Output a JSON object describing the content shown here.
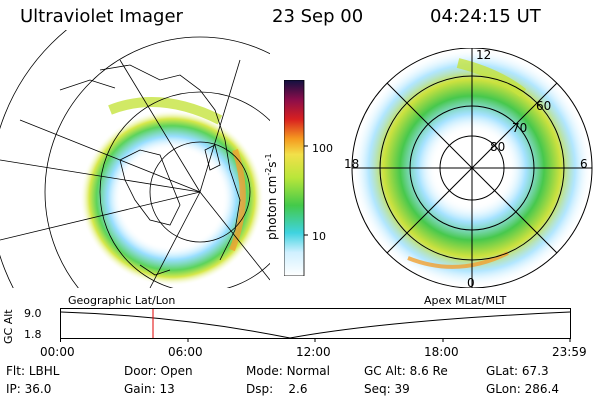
{
  "header": {
    "instrument": "Ultraviolet Imager",
    "date": "23 Sep 00",
    "time": "04:24:15 UT"
  },
  "colorbar": {
    "unit_label": "photon cm",
    "unit_exp1": "-2",
    "unit_mid": "s",
    "unit_exp2": "-1",
    "ticks": [
      "100",
      "10"
    ],
    "scale": "log"
  },
  "polar_plot": {
    "mlt_labels": {
      "top": "12",
      "left": "18",
      "right": "6",
      "bottom": "0"
    },
    "lat_labels": [
      "60",
      "70",
      "80"
    ]
  },
  "panels": {
    "left_caption": "Geographic Lat/Lon",
    "right_caption": "Apex MLat/MLT"
  },
  "altitude_plot": {
    "ylabel": "GC Alt",
    "y_ticks": [
      "9.0",
      "1.8"
    ],
    "x_ticks": [
      "00:00",
      "06:00",
      "12:00",
      "18:00",
      "23:59"
    ]
  },
  "status": {
    "col1": [
      {
        "key": "Flt:",
        "value": "LBHL"
      },
      {
        "key": "IP:",
        "value": "36.0"
      }
    ],
    "col2": [
      {
        "key": "Door:",
        "value": "Open"
      },
      {
        "key": "Gain:",
        "value": "13"
      }
    ],
    "col3": [
      {
        "key": "Mode:",
        "value": "Normal"
      },
      {
        "key": "Dsp:",
        "value": "2.6"
      }
    ],
    "col4": [
      {
        "key": "GC Alt:",
        "value": "8.6 Re"
      },
      {
        "key": "Seq:",
        "value": "39"
      }
    ],
    "col5": [
      {
        "key": "GLat:",
        "value": "67.3"
      },
      {
        "key": "GLon:",
        "value": "286.4"
      }
    ]
  },
  "colors": {
    "time_marker": "#e00000"
  }
}
